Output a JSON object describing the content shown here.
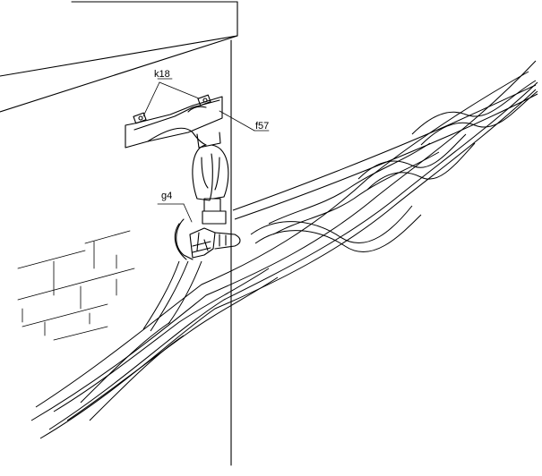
{
  "callouts": {
    "k18": "k18",
    "f57": "f57",
    "g4": "g4"
  },
  "colors": {
    "ink": "#000000",
    "paper": "#ffffff"
  }
}
